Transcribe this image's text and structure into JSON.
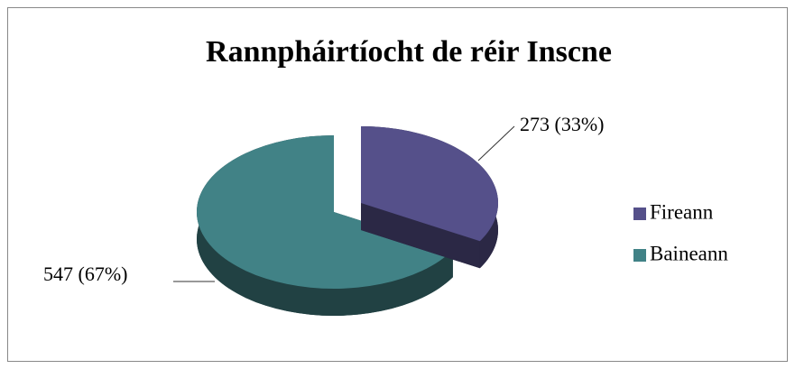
{
  "chart_data": {
    "type": "pie",
    "title": "Rannpháirtíocht de réir Inscne",
    "categories": [
      "Fireann",
      "Baineann"
    ],
    "values": [
      273,
      547
    ],
    "value_labels": [
      "273 (33%)",
      "547 (67%)"
    ],
    "colors": [
      "#55508a",
      "#418286"
    ],
    "legend": "right"
  }
}
